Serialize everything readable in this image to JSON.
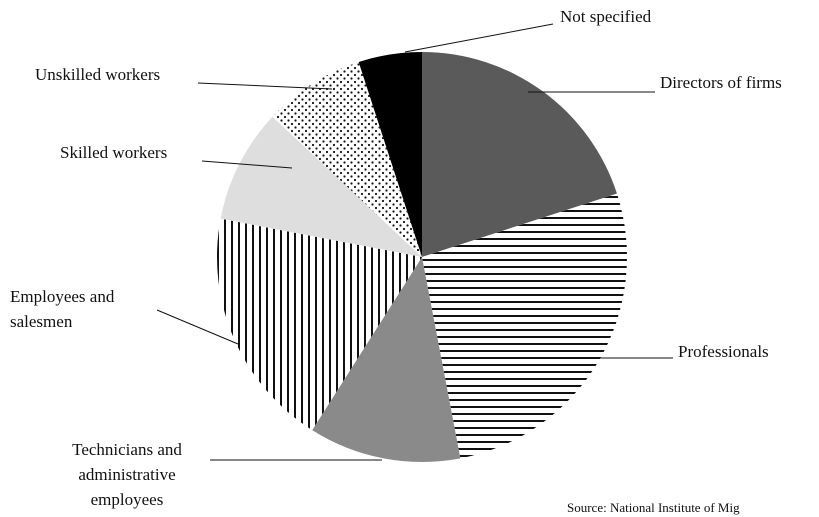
{
  "chart_data": {
    "type": "pie",
    "categories": [
      "Directors of firms",
      "Professionals",
      "Technicians and administrative employees",
      "Employees and salesmen",
      "Skilled workers",
      "Unskilled workers",
      "Not specified"
    ],
    "values": [
      20,
      27,
      12,
      19,
      9,
      8,
      5
    ],
    "colors": [
      "#5a5a5a",
      "#111111",
      "#8a8a8a",
      "#111111",
      "#dedede",
      "#111111",
      "#000000"
    ],
    "patterns": [
      null,
      "horizontal-lines",
      null,
      "vertical-lines",
      null,
      "dots",
      null
    ],
    "source": "Source: National Institute of Mig"
  }
}
